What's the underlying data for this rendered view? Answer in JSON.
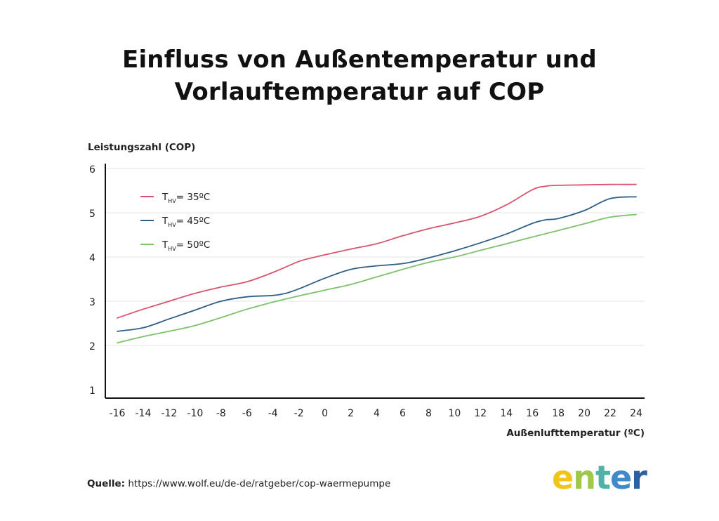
{
  "title_line1": "Einfluss von Außentemperatur und",
  "title_line2": "Vorlauftemperatur auf COP",
  "source": {
    "label": "Quelle:",
    "url": "https://www.wolf.eu/de-de/ratgeber/cop-waermepumpe"
  },
  "logo": {
    "letters": [
      "e",
      "n",
      "t",
      "e",
      "r"
    ],
    "colors": [
      "#f0c419",
      "#9fc84a",
      "#4eb3a6",
      "#3f8ac8",
      "#2e5f9e"
    ]
  },
  "chart_data": {
    "type": "line",
    "title": "Einfluss von Außentemperatur und Vorlauftemperatur auf COP",
    "ylabel": "Leistungszahl (COP)",
    "xlabel": "Außenlufttemperatur (ºC)",
    "ylim": [
      1,
      6
    ],
    "xlim": [
      -16,
      24
    ],
    "y_ticks": [
      "1",
      "2",
      "3",
      "4",
      "5",
      "6"
    ],
    "x_ticks": [
      "-16",
      "-14",
      "-12",
      "-10",
      "-8",
      "-6",
      "-4",
      "-2",
      "0",
      "2",
      "4",
      "6",
      "8",
      "10",
      "12",
      "14",
      "16",
      "18",
      "20",
      "22",
      "24"
    ],
    "grid": "horizontal",
    "legend_position": "top-left",
    "series": [
      {
        "name": "THV= 35ºC",
        "legend_main": "T",
        "legend_sub": "HV",
        "legend_rest": "= 35ºC",
        "color": "#d9546f",
        "x": [
          -16,
          -14,
          -12,
          -10,
          -8,
          -6,
          -4,
          -2,
          -1,
          0,
          2,
          4,
          6,
          8,
          10,
          12,
          14,
          16,
          17,
          18,
          20,
          22,
          24
        ],
        "y": [
          2.62,
          2.82,
          3.0,
          3.18,
          3.32,
          3.44,
          3.65,
          3.9,
          3.98,
          4.05,
          4.18,
          4.3,
          4.48,
          4.64,
          4.77,
          4.92,
          5.18,
          5.52,
          5.6,
          5.62,
          5.63,
          5.64,
          5.64
        ]
      },
      {
        "name": "THV= 45ºC",
        "legend_main": "T",
        "legend_sub": "HV",
        "legend_rest": "= 45ºC",
        "color": "#2f5f86",
        "x": [
          -16,
          -14,
          -12,
          -10,
          -8,
          -6,
          -4,
          -3,
          -2,
          0,
          2,
          4,
          6,
          8,
          10,
          12,
          14,
          16,
          17,
          18,
          20,
          22,
          24
        ],
        "y": [
          2.32,
          2.4,
          2.6,
          2.8,
          3.0,
          3.1,
          3.13,
          3.18,
          3.28,
          3.52,
          3.72,
          3.8,
          3.85,
          3.98,
          4.14,
          4.32,
          4.52,
          4.76,
          4.84,
          4.87,
          5.05,
          5.32,
          5.36
        ]
      },
      {
        "name": "THV= 50ºC",
        "legend_main": "T",
        "legend_sub": "HV",
        "legend_rest": "= 50ºC",
        "color": "#7cc16b",
        "x": [
          -16,
          -14,
          -12,
          -10,
          -8,
          -6,
          -4,
          -2,
          0,
          2,
          4,
          6,
          8,
          10,
          12,
          14,
          16,
          18,
          20,
          22,
          24
        ],
        "y": [
          2.06,
          2.2,
          2.32,
          2.45,
          2.63,
          2.82,
          2.98,
          3.12,
          3.25,
          3.38,
          3.55,
          3.72,
          3.88,
          4.0,
          4.15,
          4.3,
          4.45,
          4.6,
          4.75,
          4.9,
          4.96
        ]
      }
    ]
  }
}
